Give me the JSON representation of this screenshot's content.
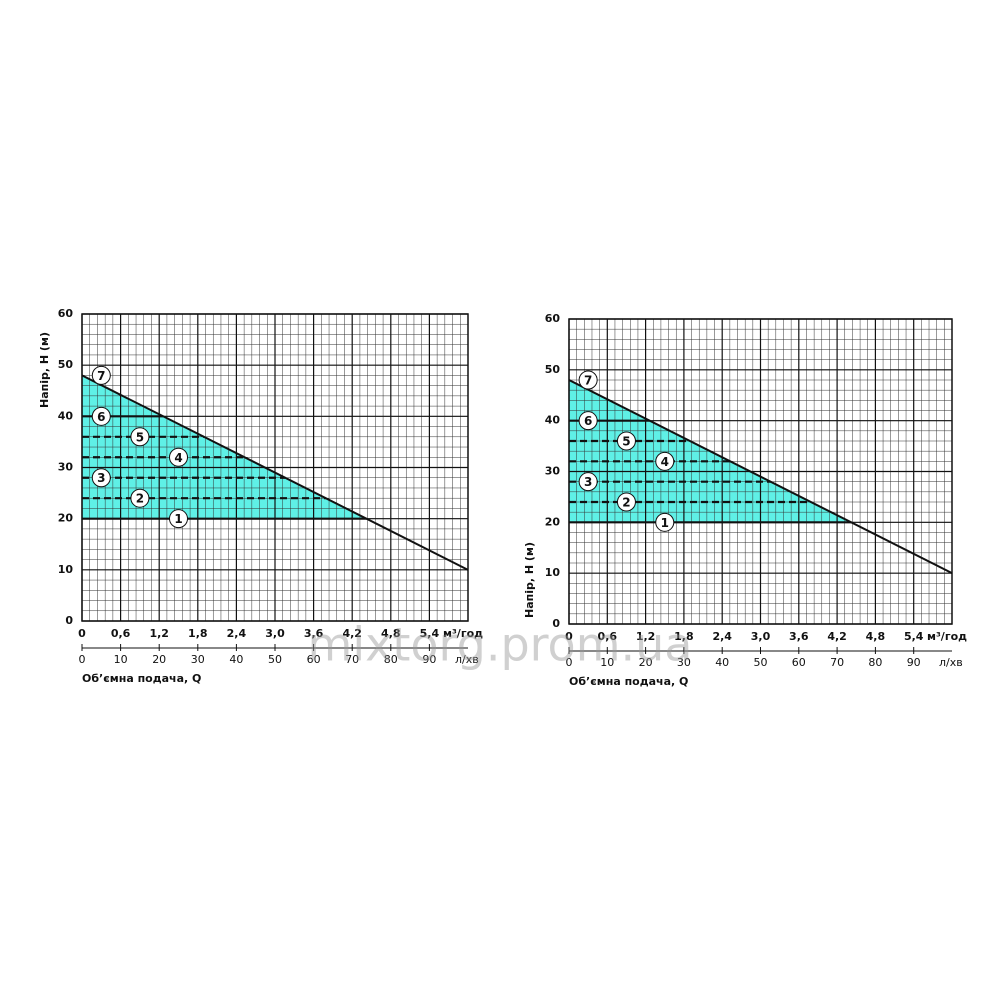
{
  "watermark": "mixtorg.prom.ua",
  "chart_data": [
    {
      "type": "line",
      "x_label": "Об’ємна подача, Q",
      "y_label": "Напір, Н (м)",
      "x_unit": "м³/год",
      "x2_unit": "л/хв",
      "xlim": [
        0,
        6
      ],
      "xticks": [
        0,
        {
          "value": 0.6,
          "label": "0,6"
        },
        {
          "value": 1.2,
          "label": "1,2"
        },
        {
          "value": 1.8,
          "label": "1,8"
        },
        {
          "value": 2.4,
          "label": "2,4"
        },
        {
          "value": 3.0,
          "label": "3,0"
        },
        {
          "value": 3.6,
          "label": "3,6"
        },
        {
          "value": 4.2,
          "label": "4,2"
        },
        {
          "value": 4.8,
          "label": "4,8"
        },
        {
          "value": 5.4,
          "label": "5,4"
        }
      ],
      "x2lim": [
        0,
        100
      ],
      "x2ticks": [
        0,
        10,
        20,
        30,
        40,
        50,
        60,
        70,
        80,
        90
      ],
      "ylim": [
        0,
        60
      ],
      "yticks": [
        0,
        10,
        20,
        30,
        40,
        50,
        60
      ],
      "grid": true,
      "fill_color": "#5ff0e6",
      "series": [
        {
          "x": [
            0,
            6
          ],
          "values": [
            48,
            10
          ],
          "color": "#111111"
        }
      ],
      "levels": [
        {
          "label": "1",
          "value": 20,
          "style": "solid"
        },
        {
          "label": "2",
          "value": 24,
          "style": "dashed"
        },
        {
          "label": "3",
          "value": 28,
          "style": "dashed"
        },
        {
          "label": "4",
          "value": 32,
          "style": "dashed"
        },
        {
          "label": "5",
          "value": 36,
          "style": "dashed"
        },
        {
          "label": "6",
          "value": 40,
          "style": "solid"
        },
        {
          "label": "7",
          "value": 48,
          "style": "solid"
        }
      ]
    },
    {
      "type": "line",
      "x_label": "Об’ємна подача, Q",
      "y_label": "Напір, Н (м)",
      "x_unit": "м³/год",
      "x2_unit": "л/хв",
      "xlim": [
        0,
        6
      ],
      "xticks": [
        0,
        {
          "value": 0.6,
          "label": "0,6"
        },
        {
          "value": 1.2,
          "label": "1,2"
        },
        {
          "value": 1.8,
          "label": "1,8"
        },
        {
          "value": 2.4,
          "label": "2,4"
        },
        {
          "value": 3.0,
          "label": "3,0"
        },
        {
          "value": 3.6,
          "label": "3,6"
        },
        {
          "value": 4.2,
          "label": "4,2"
        },
        {
          "value": 4.8,
          "label": "4,8"
        },
        {
          "value": 5.4,
          "label": "5,4"
        }
      ],
      "x2lim": [
        0,
        100
      ],
      "x2ticks": [
        0,
        10,
        20,
        30,
        40,
        50,
        60,
        70,
        80,
        90
      ],
      "ylim": [
        0,
        60
      ],
      "yticks": [
        0,
        10,
        20,
        30,
        40,
        50,
        60
      ],
      "grid": true,
      "fill_color": "#5ff0e6",
      "series": [
        {
          "x": [
            0,
            6
          ],
          "values": [
            48,
            10
          ],
          "color": "#111111"
        }
      ],
      "levels": [
        {
          "label": "1",
          "value": 20,
          "style": "solid"
        },
        {
          "label": "2",
          "value": 24,
          "style": "dashed"
        },
        {
          "label": "3",
          "value": 28,
          "style": "dashed"
        },
        {
          "label": "4",
          "value": 32,
          "style": "dashed"
        },
        {
          "label": "5",
          "value": 36,
          "style": "dashed"
        },
        {
          "label": "6",
          "value": 40,
          "style": "solid"
        },
        {
          "label": "7",
          "value": 48,
          "style": "solid"
        }
      ]
    }
  ]
}
